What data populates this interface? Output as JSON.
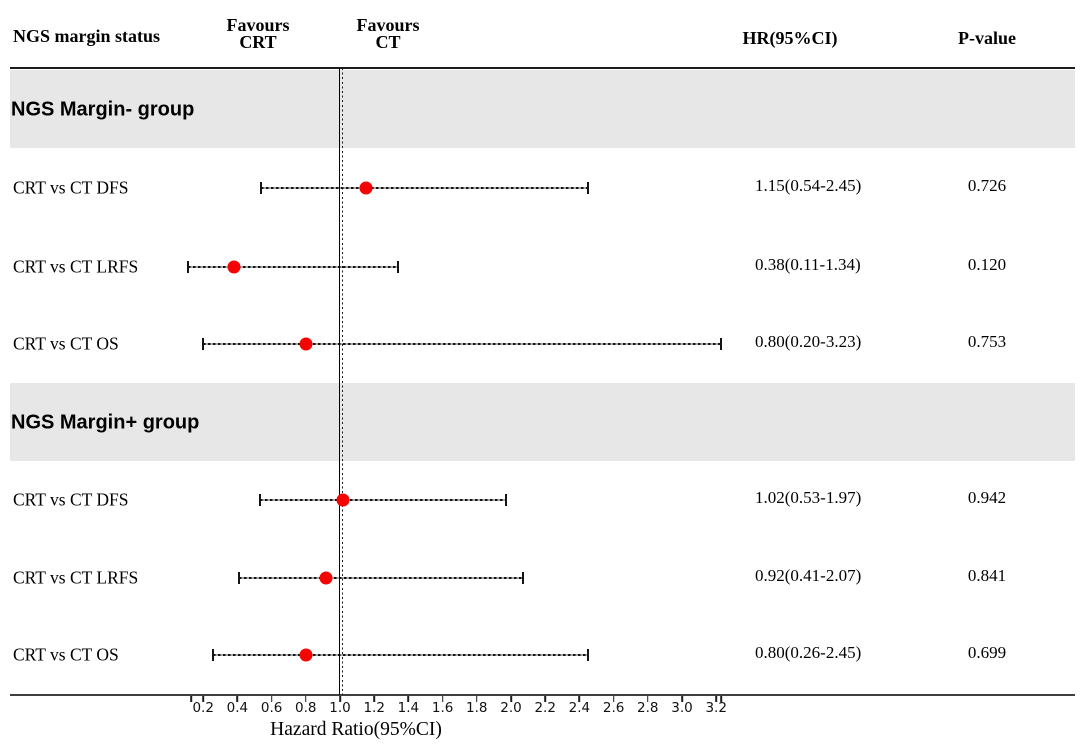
{
  "header": {
    "col_label": "NGS margin status",
    "favours_left_line1": "Favours",
    "favours_left_line2": "CRT",
    "favours_right_line1": "Favours",
    "favours_right_line2": "CT",
    "hr_header": "HR(95%CI)",
    "p_header": "P-value"
  },
  "chart_data": {
    "type": "forest",
    "x_axis": {
      "label": "Hazard Ratio(95%CI)",
      "ticks": [
        0.2,
        0.4,
        0.6,
        0.8,
        1.0,
        1.2,
        1.4,
        1.6,
        1.8,
        2.0,
        2.2,
        2.4,
        2.6,
        2.8,
        3.0,
        3.2
      ],
      "range": [
        0.13,
        3.23
      ],
      "ref_line": 1.0
    },
    "groups": [
      {
        "label": "NGS Margin- group",
        "rows": [
          {
            "label": "CRT vs CT DFS",
            "hr": 1.15,
            "lo": 0.54,
            "hi": 2.45,
            "hr_text": "1.15(0.54-2.45)",
            "p": "0.726"
          },
          {
            "label": "CRT vs CT LRFS",
            "hr": 0.38,
            "lo": 0.11,
            "hi": 1.34,
            "hr_text": "0.38(0.11-1.34)",
            "p": "0.120"
          },
          {
            "label": "CRT vs CT OS",
            "hr": 0.8,
            "lo": 0.2,
            "hi": 3.23,
            "hr_text": "0.80(0.20-3.23)",
            "p": "0.753"
          }
        ]
      },
      {
        "label": "NGS Margin+ group",
        "rows": [
          {
            "label": "CRT vs CT DFS",
            "hr": 1.02,
            "lo": 0.53,
            "hi": 1.97,
            "hr_text": "1.02(0.53-1.97)",
            "p": "0.942"
          },
          {
            "label": "CRT vs CT LRFS",
            "hr": 0.92,
            "lo": 0.41,
            "hi": 2.07,
            "hr_text": "0.92(0.41-2.07)",
            "p": "0.841"
          },
          {
            "label": "CRT vs CT OS",
            "hr": 0.8,
            "lo": 0.26,
            "hi": 2.45,
            "hr_text": "0.80(0.26-2.45)",
            "p": "0.699"
          }
        ]
      }
    ]
  },
  "colors": {
    "marker": "#f50404",
    "band": "#e7e7e7",
    "rule_top": "#1c1c1c",
    "rule_bottom": "#3f3f3f"
  }
}
